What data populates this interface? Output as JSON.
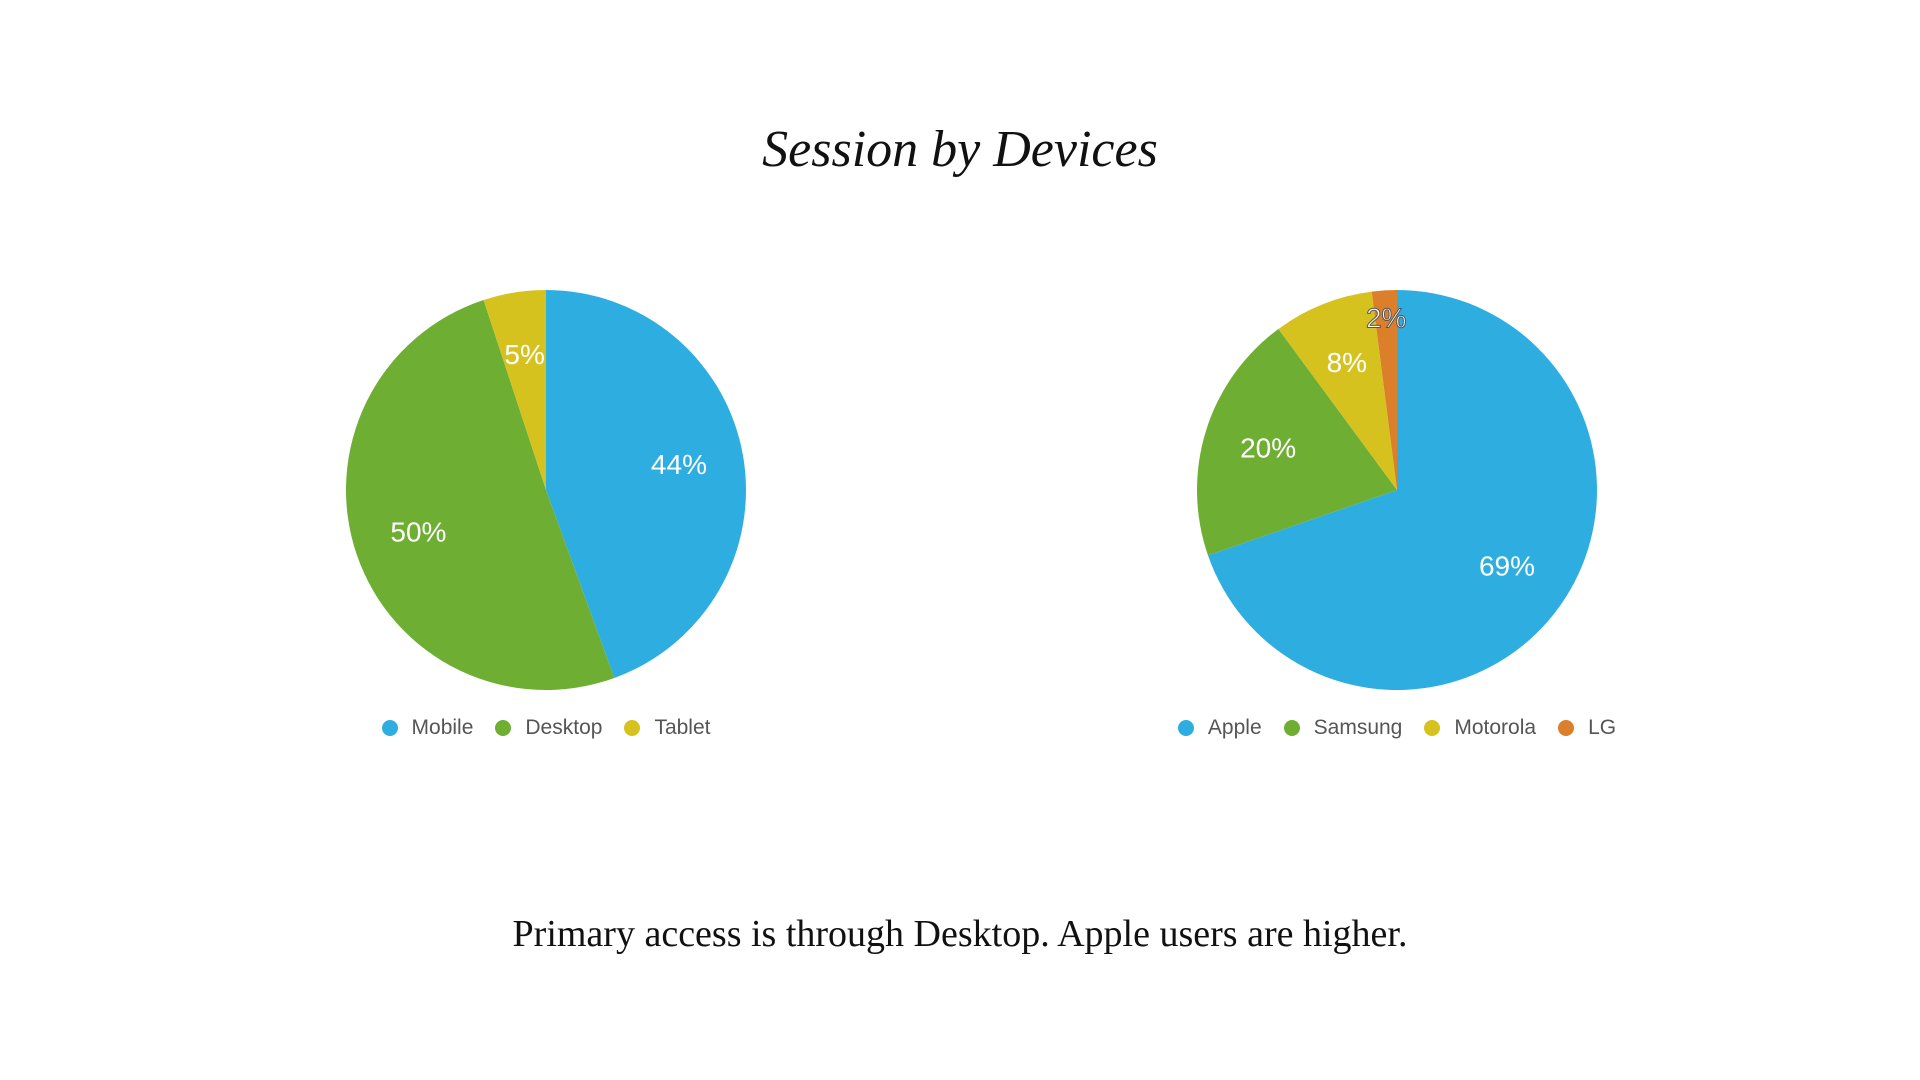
{
  "title": "Session by Devices",
  "caption": "Primary access is through Desktop. Apple users are higher.",
  "chart_data": [
    {
      "type": "pie",
      "slices": [
        {
          "label": "Mobile",
          "value": 44,
          "value_label": "44%",
          "color": "#2eaee0"
        },
        {
          "label": "Desktop",
          "value": 50,
          "value_label": "50%",
          "color": "#6eaf33"
        },
        {
          "label": "Tablet",
          "value": 5,
          "value_label": "5%",
          "color": "#d6c21f"
        }
      ],
      "legend_position": "bottom"
    },
    {
      "type": "pie",
      "slices": [
        {
          "label": "Apple",
          "value": 69,
          "value_label": "69%",
          "color": "#2eaee0"
        },
        {
          "label": "Samsung",
          "value": 20,
          "value_label": "20%",
          "color": "#6eaf33"
        },
        {
          "label": "Motorola",
          "value": 8,
          "value_label": "8%",
          "color": "#d6c21f"
        },
        {
          "label": "LG",
          "value": 2,
          "value_label": "2%",
          "color": "#dc7f2b"
        }
      ],
      "legend_position": "bottom"
    }
  ]
}
